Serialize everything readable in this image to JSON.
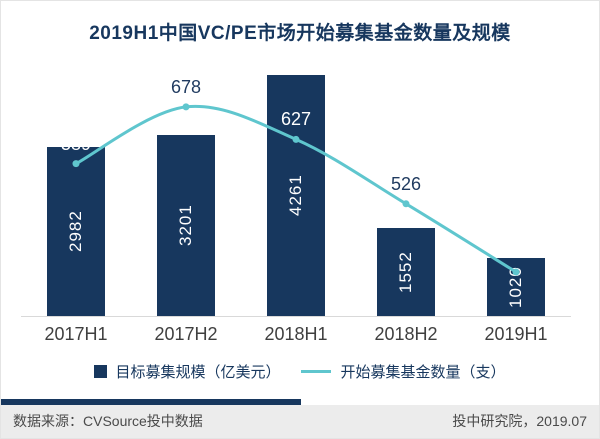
{
  "title": "2019H1中国VC/PE市场开始募集基金数量及规模",
  "chart_data": {
    "type": "combo",
    "categories": [
      "2017H1",
      "2017H2",
      "2018H1",
      "2018H2",
      "2019H1"
    ],
    "series": [
      {
        "name": "目标募集规模（亿美元）",
        "type": "bar",
        "values": [
          2982,
          3201,
          4261,
          1552,
          1020
        ],
        "color": "#17375e"
      },
      {
        "name": "开始募集基金数量（支）",
        "type": "line",
        "values": [
          589,
          678,
          627,
          526,
          419
        ],
        "color": "#5fc6ce"
      }
    ],
    "title": "2019H1中国VC/PE市场开始募集基金数量及规模",
    "xlabel": "",
    "ylabel": "",
    "legend_position": "bottom",
    "grid": false,
    "bar_axis_max": 4500,
    "line_axis_range": [
      350,
      750
    ]
  },
  "footer": {
    "source": "数据来源：CVSource投中数据",
    "credit": "投中研究院，2019.07"
  },
  "colors": {
    "bar": "#17375e",
    "line": "#5fc6ce",
    "title": "#17375e",
    "footer_bg": "#ececec"
  }
}
